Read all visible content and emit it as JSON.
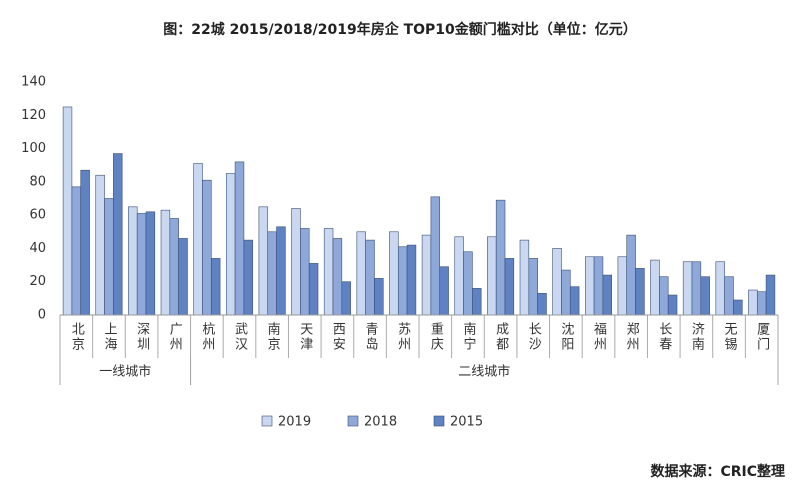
{
  "chart_data": {
    "type": "bar",
    "title": "图：22城 2015/2018/2019年房企 TOP10金额门槛对比（单位：亿元）",
    "source": "数据来源：CRIC整理",
    "category_groups": [
      {
        "name": "一线城市",
        "categories": [
          "北京",
          "上海",
          "深圳",
          "广州"
        ]
      },
      {
        "name": "二线城市",
        "categories": [
          "杭州",
          "武汉",
          "南京",
          "天津",
          "西安",
          "青岛",
          "苏州",
          "重庆",
          "南宁",
          "成都",
          "长沙",
          "沈阳",
          "福州",
          "郑州",
          "长春",
          "济南",
          "无锡",
          "厦门"
        ]
      }
    ],
    "series": [
      {
        "name": "2019",
        "color": "#c9d7f0",
        "values": [
          125,
          84,
          65,
          63,
          91,
          85,
          65,
          64,
          52,
          50,
          50,
          48,
          47,
          47,
          45,
          40,
          35,
          35,
          33,
          32,
          32,
          15
        ]
      },
      {
        "name": "2018",
        "color": "#8ea9d9",
        "values": [
          77,
          70,
          61,
          58,
          81,
          92,
          50,
          52,
          46,
          45,
          41,
          71,
          38,
          69,
          34,
          27,
          35,
          48,
          23,
          32,
          23,
          14
        ]
      },
      {
        "name": "2015",
        "color": "#5f82c2",
        "values": [
          87,
          97,
          62,
          46,
          34,
          45,
          53,
          31,
          20,
          22,
          42,
          29,
          16,
          34,
          13,
          17,
          24,
          28,
          12,
          23,
          9,
          24
        ]
      }
    ],
    "ylim": [
      0,
      140
    ],
    "yticks": [
      0,
      20,
      40,
      60,
      80,
      100,
      120,
      140
    ],
    "grid": false
  }
}
